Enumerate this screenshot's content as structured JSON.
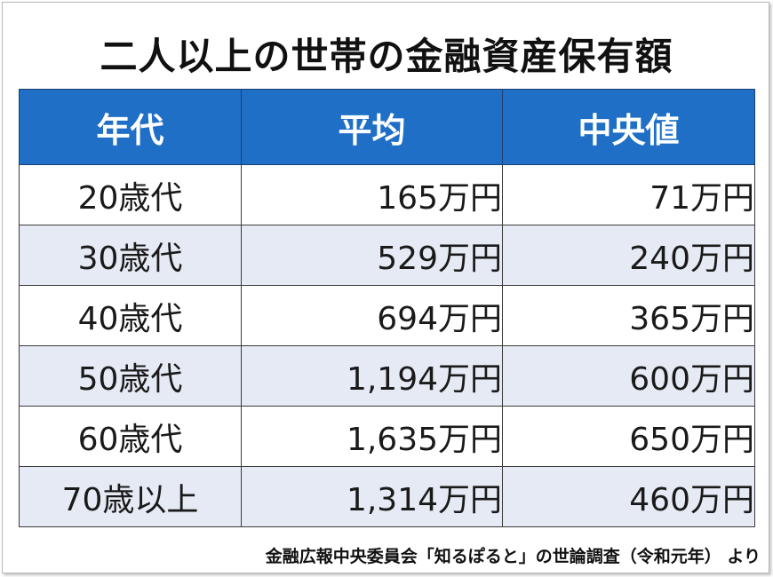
{
  "title": "二人以上の世帯の金融資産保有額",
  "table": {
    "headers": [
      "年代",
      "平均",
      "中央値"
    ],
    "rows": [
      {
        "age": "20歳代",
        "average": "165万円",
        "median": "71万円"
      },
      {
        "age": "30歳代",
        "average": "529万円",
        "median": "240万円"
      },
      {
        "age": "40歳代",
        "average": "694万円",
        "median": "365万円"
      },
      {
        "age": "50歳代",
        "average": "1,194万円",
        "median": "600万円"
      },
      {
        "age": "60歳代",
        "average": "1,635万円",
        "median": "650万円"
      },
      {
        "age": "70歳以上",
        "average": "1,314万円",
        "median": "460万円"
      }
    ]
  },
  "source": "金融広報中央委員会「知るぽると」の世論調査（令和元年） より",
  "colors": {
    "header_bg": "#1f6fc6",
    "header_text": "#ffffff",
    "stripe_bg": "#e6eaf5"
  }
}
